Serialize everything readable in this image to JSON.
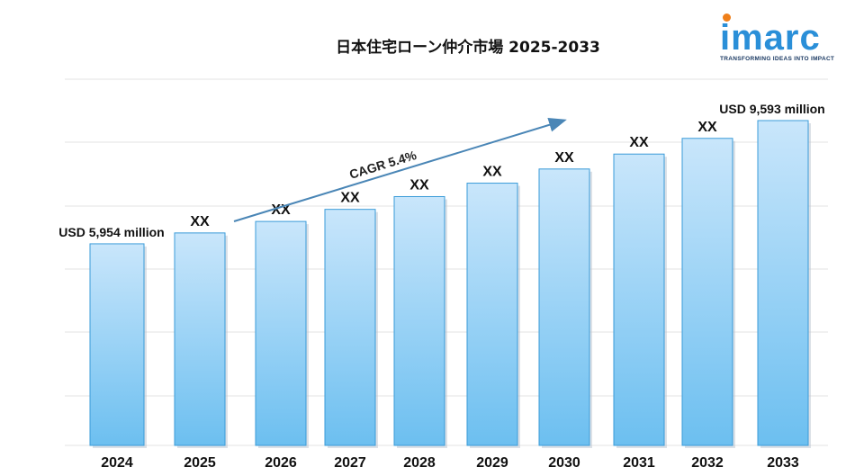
{
  "title": "日本住宅ローン仲介市場  2025-2033",
  "logo": {
    "word": "imarc",
    "tagline": "TRANSFORMING IDEAS INTO IMPACT"
  },
  "colors": {
    "bar_top": "#c9e6fb",
    "bar_bottom": "#6cbff0",
    "bar_edge": "#3a9bd8",
    "arrow": "#4a86b6",
    "logo_blue": "#2a8fd8",
    "logo_dot": "#ef7f1a"
  },
  "chart_data": {
    "type": "bar",
    "categories": [
      "2024",
      "2025",
      "2026",
      "2027",
      "2028",
      "2029",
      "2030",
      "2031",
      "2032",
      "2033"
    ],
    "values": [
      5954,
      6275,
      6614,
      6971,
      7348,
      7745,
      8163,
      8604,
      9068,
      9593
    ],
    "data_labels": [
      "USD 5,954 million",
      "XX",
      "XX",
      "XX",
      "XX",
      "XX",
      "XX",
      "XX",
      "XX",
      "USD 9,593 million"
    ],
    "unit": "USD million",
    "annotation": "CAGR 5.4%",
    "grid": true,
    "legend": "none"
  }
}
